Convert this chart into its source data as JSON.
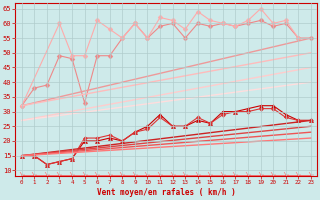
{
  "bg_color": "#ceeaea",
  "grid_color": "#b0cccc",
  "xlabel": "Vent moyen/en rafales ( km/h )",
  "x_ticks": [
    0,
    1,
    2,
    3,
    4,
    5,
    6,
    7,
    8,
    9,
    10,
    11,
    12,
    13,
    14,
    15,
    16,
    17,
    18,
    19,
    20,
    21,
    22,
    23
  ],
  "ylim": [
    8,
    67
  ],
  "y_ticks": [
    10,
    15,
    20,
    25,
    30,
    35,
    40,
    45,
    50,
    55,
    60,
    65
  ],
  "lines": [
    {
      "x": [
        0,
        1,
        2,
        3,
        4,
        5,
        6,
        7,
        8,
        9,
        10,
        11,
        12,
        13,
        14,
        15,
        16,
        17,
        18,
        19,
        20,
        21,
        22,
        23
      ],
      "y": [
        32,
        38,
        39,
        49,
        48,
        33,
        49,
        49,
        55,
        60,
        55,
        59,
        60,
        55,
        60,
        59,
        60,
        59,
        60,
        61,
        59,
        60,
        55,
        55
      ],
      "color": "#ee8888",
      "marker": "D",
      "markersize": 2.5,
      "linewidth": 0.8
    },
    {
      "x": [
        0,
        3,
        4,
        5,
        6,
        7,
        8,
        9,
        10,
        11,
        12,
        13,
        14,
        15,
        16,
        17,
        18,
        19,
        20,
        21,
        22
      ],
      "y": [
        32,
        60,
        49,
        49,
        61,
        58,
        55,
        60,
        55,
        62,
        61,
        58,
        64,
        61,
        60,
        59,
        61,
        65,
        60,
        61,
        55
      ],
      "color": "#ffaaaa",
      "marker": "D",
      "markersize": 2.5,
      "linewidth": 0.8
    },
    {
      "x": [
        0,
        23
      ],
      "y": [
        32,
        55
      ],
      "color": "#ee9999",
      "marker": null,
      "markersize": 0,
      "linewidth": 1.0
    },
    {
      "x": [
        0,
        23
      ],
      "y": [
        32,
        50
      ],
      "color": "#ffbbbb",
      "marker": null,
      "markersize": 0,
      "linewidth": 1.0
    },
    {
      "x": [
        0,
        23
      ],
      "y": [
        27,
        45
      ],
      "color": "#ffcccc",
      "marker": null,
      "markersize": 0,
      "linewidth": 1.0
    },
    {
      "x": [
        0,
        23
      ],
      "y": [
        27,
        40
      ],
      "color": "#ffdddd",
      "marker": null,
      "markersize": 0,
      "linewidth": 1.0
    },
    {
      "x": [
        0,
        1,
        2,
        3,
        4,
        5,
        6,
        7,
        8,
        9,
        10,
        11,
        12,
        13,
        14,
        15,
        16,
        17,
        18,
        19,
        20,
        21,
        22,
        23
      ],
      "y": [
        15,
        15,
        12,
        13,
        14,
        20,
        20,
        21,
        20,
        23,
        25,
        29,
        25,
        25,
        27,
        26,
        30,
        30,
        31,
        32,
        32,
        29,
        27,
        27
      ],
      "color": "#cc0000",
      "marker": "^",
      "markersize": 3.0,
      "linewidth": 0.8
    },
    {
      "x": [
        0,
        1,
        2,
        3,
        4,
        5,
        6,
        7,
        8,
        9,
        10,
        11,
        12,
        13,
        14,
        15,
        16,
        17,
        18,
        19,
        20,
        21,
        22,
        23
      ],
      "y": [
        15,
        15,
        12,
        13,
        14,
        21,
        21,
        22,
        20,
        23,
        24,
        28,
        25,
        25,
        28,
        26,
        29,
        30,
        30,
        31,
        31,
        28,
        27,
        27
      ],
      "color": "#dd3333",
      "marker": "D",
      "markersize": 2.0,
      "linewidth": 0.8
    },
    {
      "x": [
        0,
        23
      ],
      "y": [
        15,
        27
      ],
      "color": "#cc2222",
      "marker": null,
      "markersize": 0,
      "linewidth": 1.0
    },
    {
      "x": [
        0,
        23
      ],
      "y": [
        15,
        25
      ],
      "color": "#dd4444",
      "marker": null,
      "markersize": 0,
      "linewidth": 1.0
    },
    {
      "x": [
        0,
        23
      ],
      "y": [
        15,
        23
      ],
      "color": "#ee5555",
      "marker": null,
      "markersize": 0,
      "linewidth": 1.0
    },
    {
      "x": [
        0,
        23
      ],
      "y": [
        15,
        21
      ],
      "color": "#ff7777",
      "marker": null,
      "markersize": 0,
      "linewidth": 1.0
    },
    {
      "x": [
        0,
        1,
        2,
        3,
        4,
        5,
        6,
        7,
        8,
        9,
        10,
        11,
        12,
        13,
        14,
        15,
        16,
        17,
        18,
        19,
        20,
        21,
        22,
        23
      ],
      "y": [
        8.5,
        8.5,
        8.5,
        8.5,
        8.5,
        8.5,
        8.5,
        8.5,
        8.5,
        8.5,
        8.5,
        8.5,
        8.5,
        8.5,
        8.5,
        8.5,
        8.5,
        8.5,
        8.5,
        8.5,
        8.5,
        8.5,
        8.5,
        8.5
      ],
      "color": "#ff4444",
      "marker": "4",
      "markersize": 5,
      "linewidth": 0.5
    }
  ]
}
